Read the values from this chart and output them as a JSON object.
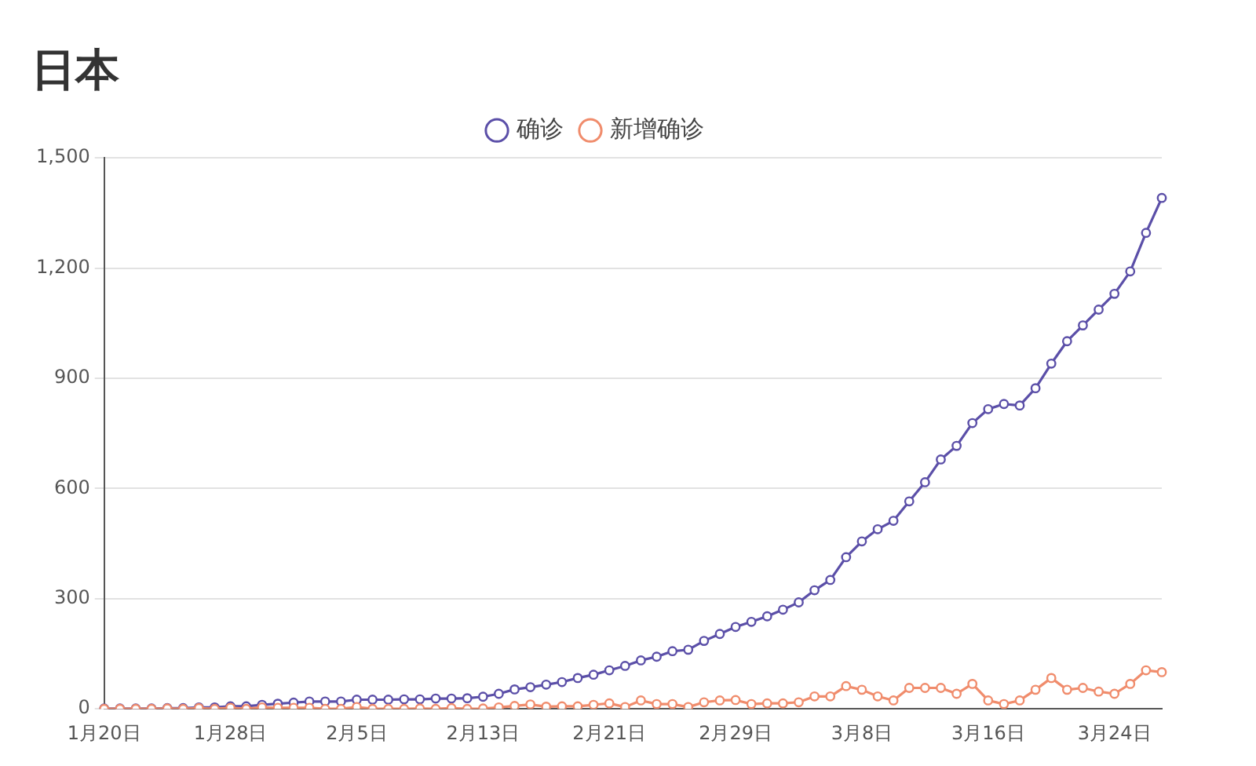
{
  "chart_data": {
    "type": "line",
    "title": "日本",
    "categories": [
      "1月20日",
      null,
      null,
      null,
      null,
      null,
      null,
      null,
      "1月28日",
      null,
      null,
      null,
      null,
      null,
      null,
      null,
      "2月5日",
      null,
      null,
      null,
      null,
      null,
      null,
      null,
      "2月13日",
      null,
      null,
      null,
      null,
      null,
      null,
      null,
      "2月21日",
      null,
      null,
      null,
      null,
      null,
      null,
      null,
      "2月29日",
      null,
      null,
      null,
      null,
      null,
      null,
      null,
      "3月8日",
      null,
      null,
      null,
      null,
      null,
      null,
      null,
      "3月16日",
      null,
      null,
      null,
      null,
      null,
      null,
      null,
      "3月24日",
      null,
      null,
      null
    ],
    "series": [
      {
        "name": "确诊",
        "color": "#5b4fa8",
        "values": [
          1,
          1,
          1,
          1,
          2,
          2,
          4,
          4,
          7,
          7,
          11,
          14,
          17,
          20,
          20,
          20,
          25,
          25,
          25,
          26,
          26,
          28,
          28,
          29,
          33,
          41,
          53,
          59,
          66,
          73,
          84,
          93,
          105,
          117,
          132,
          142,
          157,
          161,
          185,
          204,
          223,
          237,
          252,
          270,
          290,
          323,
          351,
          413,
          456,
          489,
          512,
          565,
          617,
          679,
          716,
          778,
          816,
          830,
          826,
          873,
          940,
          1001,
          1044,
          1087,
          1130,
          1191,
          1296,
          1391
        ]
      },
      {
        "name": "新增确诊",
        "color": "#f08c6c",
        "values": [
          0,
          0,
          0,
          0,
          1,
          0,
          2,
          0,
          3,
          0,
          4,
          3,
          3,
          3,
          0,
          0,
          5,
          0,
          0,
          0,
          1,
          0,
          2,
          0,
          1,
          4,
          8,
          12,
          6,
          7,
          7,
          11,
          15,
          5,
          23,
          13,
          13,
          5,
          18,
          23,
          24,
          13,
          15,
          15,
          18,
          34,
          34,
          62,
          52,
          34,
          23,
          57,
          57,
          57,
          41,
          68,
          23,
          13,
          23,
          52,
          84,
          52,
          57,
          47,
          41,
          68,
          105,
          100
        ]
      }
    ],
    "ylim": [
      0,
      1500
    ],
    "yticks": [
      0,
      300,
      600,
      900,
      {
        "value": 1200,
        "label": "1,200"
      },
      {
        "value": 1500,
        "label": "1,500"
      }
    ],
    "grid": "y",
    "legend": "top",
    "marker": "circle",
    "line_style": "solid"
  }
}
